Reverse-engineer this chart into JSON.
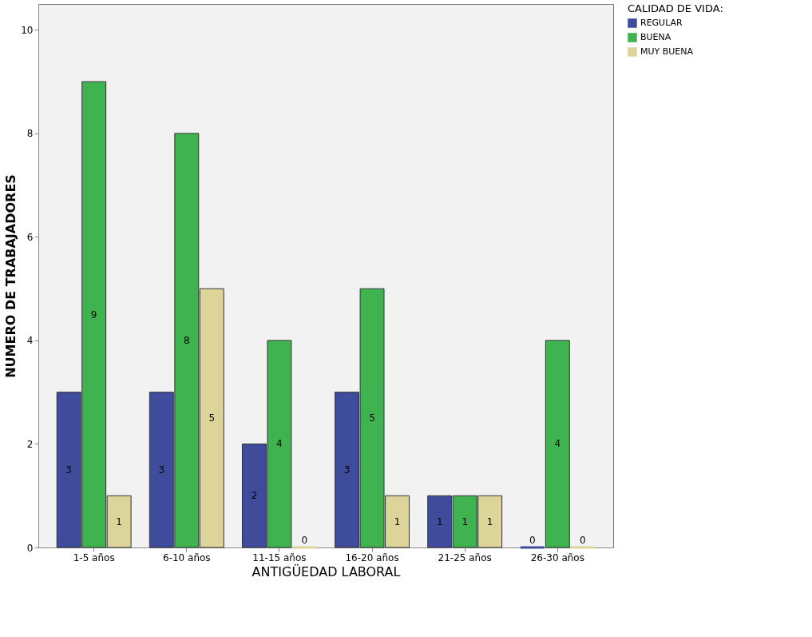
{
  "chart_data": {
    "type": "bar",
    "xlabel": "ANTIGÜEDAD LABORAL",
    "ylabel": "NUMERO DE TRABAJADORES",
    "legend_title": "CALIDAD DE VIDA:",
    "categories": [
      "1-5 años",
      "6-10 años",
      "11-15 años",
      "16-20 años",
      "21-25 años",
      "26-30 años"
    ],
    "series": [
      {
        "name": "REGULAR",
        "color": "#3f4c9c",
        "values": [
          3,
          3,
          2,
          3,
          1,
          0
        ]
      },
      {
        "name": "BUENA",
        "color": "#3fb34f",
        "values": [
          9,
          8,
          4,
          5,
          1,
          4
        ]
      },
      {
        "name": "MUY BUENA",
        "color": "#dcd498",
        "values": [
          1,
          5,
          0,
          1,
          1,
          0
        ]
      }
    ],
    "ylim": [
      0,
      10.5
    ],
    "yticks": [
      0,
      2,
      4,
      6,
      8,
      10
    ],
    "grid": false,
    "legend": "top right",
    "data_labels": true
  }
}
